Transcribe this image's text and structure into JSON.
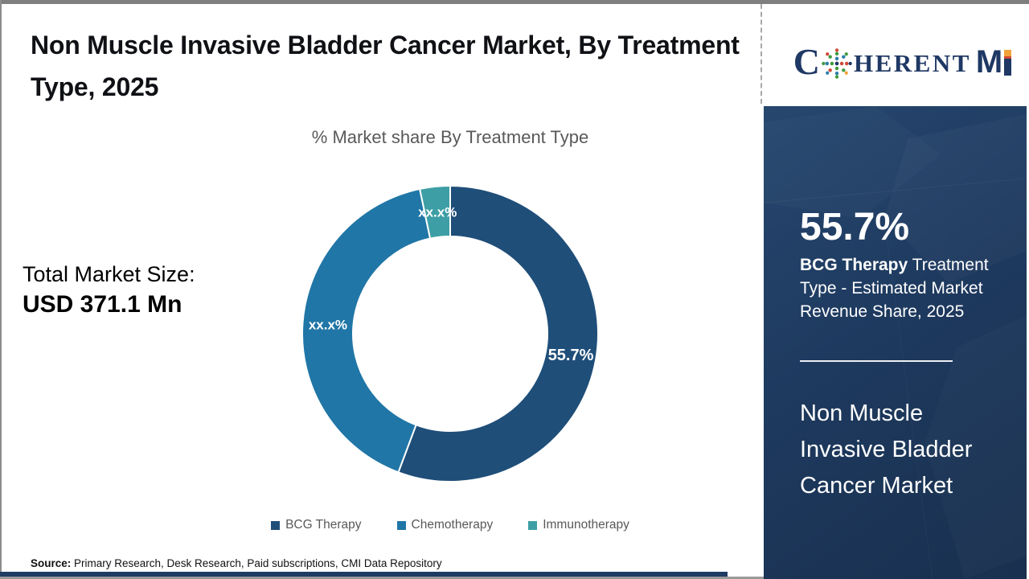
{
  "header": {
    "title": "Non Muscle Invasive Bladder Cancer Market, By Treatment Type, 2025"
  },
  "logo": {
    "text_c": "C",
    "text_herent": "HERENT",
    "text_m": "M",
    "brand_navy": "#1F3864",
    "brand_orange": "#F2A23A"
  },
  "totals": {
    "label": "Total Market Size:",
    "value": "USD 371.1 Mn"
  },
  "chart_data": {
    "type": "pie",
    "donut": true,
    "title": "% Market share By Treatment Type",
    "categories": [
      "BCG Therapy",
      "Chemotherapy",
      "Immunotherapy"
    ],
    "values": [
      55.7,
      41.0,
      3.3
    ],
    "data_labels": [
      "55.7%",
      "xx.x%",
      "xx.x%"
    ],
    "colors": [
      "#1F4E79",
      "#2076A6",
      "#3D9FA5"
    ],
    "legend_position": "bottom",
    "start_angle_deg": 0,
    "direction": "clockwise"
  },
  "sidebar": {
    "background": "#1E3A5F",
    "stat_value": "55.7%",
    "stat_label_bold": "BCG Therapy",
    "stat_label_rest": " Treatment Type - Estimated Market Revenue Share, 2025",
    "market_name": "Non Muscle Invasive Bladder Cancer Market"
  },
  "footer": {
    "source_label": "Source:",
    "source_text": " Primary Research, Desk Research, Paid subscriptions, CMI Data Repository"
  }
}
